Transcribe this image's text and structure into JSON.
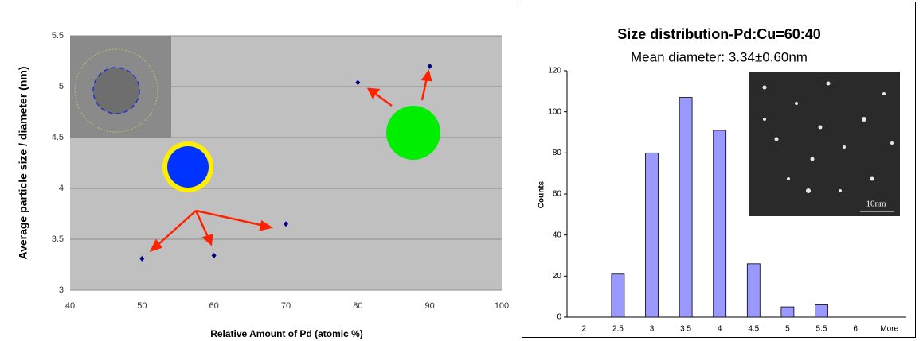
{
  "chart_data": [
    {
      "type": "scatter",
      "x_label": "Relative Amount of Pd (atomic %)",
      "y_label": "Average particle size / diameter (nm)",
      "x": [
        50,
        60,
        70,
        80,
        90
      ],
      "values": [
        3.31,
        3.34,
        3.65,
        5.04,
        5.2
      ],
      "color": "#000080",
      "xlim": [
        40,
        100
      ],
      "xticks": [
        40,
        50,
        60,
        70,
        80,
        90,
        100
      ],
      "ylim": [
        3,
        5.5
      ],
      "yticks": [
        3,
        3.5,
        4,
        4.5,
        5,
        5.5
      ],
      "grid": true
    },
    {
      "type": "bar",
      "title": "Size distribution-Pd:Cu=60:40",
      "subtitle": "Mean diameter: 3.34±0.60nm",
      "y_label": "Counts",
      "annotation": "10nm",
      "categories": [
        "2",
        "2.5",
        "3",
        "3.5",
        "4",
        "4.5",
        "5",
        "5.5",
        "6",
        "More"
      ],
      "values": [
        0,
        21,
        80,
        107,
        91,
        26,
        5,
        6,
        0,
        0
      ],
      "color": "#9999ff",
      "ylim": [
        0,
        120
      ],
      "yticks": [
        0,
        20,
        40,
        60,
        80,
        100,
        120
      ],
      "grid": false
    }
  ]
}
